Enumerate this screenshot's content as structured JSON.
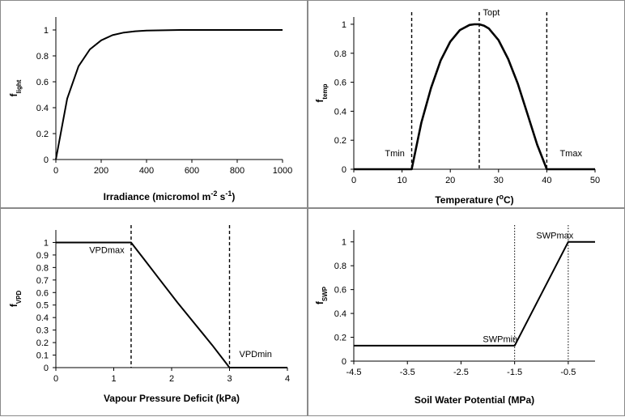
{
  "chart_data": [
    {
      "type": "line",
      "xlabel": "Irradiance (micromol m-2 s-1)",
      "xlabel_main": "Irradiance (micromol m",
      "xlabel_sup1": "-2",
      "xlabel_mid": " s",
      "xlabel_sup2": "-1",
      "xlabel_end": ")",
      "ylabel_main": "f",
      "ylabel_sub": "light",
      "xlim": [
        0,
        1000
      ],
      "ylim": [
        0,
        1.1
      ],
      "xticks": [
        "0",
        "200",
        "400",
        "600",
        "800",
        "1000"
      ],
      "yticks": [
        "0",
        "0.2",
        "0.4",
        "0.6",
        "0.8",
        "1"
      ],
      "series": [
        {
          "x": [
            0,
            50,
            100,
            150,
            200,
            250,
            300,
            350,
            400,
            450,
            500,
            550,
            600,
            700,
            800,
            900,
            1000
          ],
          "y": [
            0,
            0.47,
            0.72,
            0.85,
            0.92,
            0.96,
            0.98,
            0.99,
            0.995,
            0.997,
            0.998,
            1,
            1,
            1,
            1,
            1,
            1
          ]
        }
      ],
      "vlines": [],
      "annotations": []
    },
    {
      "type": "line",
      "xlabel_main": "Temperature (",
      "xlabel_sup1": "o",
      "xlabel_mid": "C)",
      "xlabel_sup2": "",
      "xlabel_end": "",
      "ylabel_main": "f",
      "ylabel_sub": "temp",
      "xlim": [
        0,
        50
      ],
      "ylim": [
        0,
        1.05
      ],
      "xticks": [
        "0",
        "10",
        "20",
        "30",
        "40",
        "50"
      ],
      "yticks": [
        "0",
        "0.2",
        "0.4",
        "0.6",
        "0.8",
        "1"
      ],
      "series": [
        {
          "x": [
            0,
            12,
            14,
            16,
            18,
            20,
            22,
            24,
            25,
            26,
            27,
            28,
            30,
            32,
            34,
            36,
            38,
            40,
            50
          ],
          "y": [
            0,
            0,
            0.32,
            0.56,
            0.75,
            0.88,
            0.96,
            0.995,
            1,
            1,
            0.99,
            0.97,
            0.89,
            0.76,
            0.59,
            0.38,
            0.17,
            0,
            0
          ]
        }
      ],
      "vlines": [
        12,
        26,
        40
      ],
      "vline_style": "dashed",
      "annotations": [
        {
          "text": "Tmin",
          "x": 8.5,
          "y": 0.09
        },
        {
          "text": "Topt",
          "x": 28.5,
          "y": 1.06
        },
        {
          "text": "Tmax",
          "x": 45,
          "y": 0.09
        }
      ]
    },
    {
      "type": "line",
      "xlabel_main": "Vapour Pressure Deficit (kPa)",
      "xlabel_sup1": "",
      "xlabel_mid": "",
      "xlabel_sup2": "",
      "xlabel_end": "",
      "ylabel_main": "f",
      "ylabel_sub": "VPD",
      "xlim": [
        0,
        4
      ],
      "ylim": [
        0,
        1.1
      ],
      "xticks": [
        "0",
        "1",
        "2",
        "3",
        "4"
      ],
      "yticks": [
        "0",
        "0.1",
        "0.2",
        "0.3",
        "0.4",
        "0.5",
        "0.6",
        "0.7",
        "0.8",
        "0.9",
        "1"
      ],
      "series": [
        {
          "x": [
            0,
            1.3,
            1.35,
            1.5,
            1.8,
            2.1,
            2.4,
            2.7,
            3.0,
            4.0
          ],
          "y": [
            1,
            1,
            0.97,
            0.88,
            0.7,
            0.52,
            0.35,
            0.18,
            0,
            0
          ]
        }
      ],
      "vlines": [
        1.3,
        3.0
      ],
      "vline_style": "dashed",
      "annotations": [
        {
          "text": "VPDmax",
          "x": 0.88,
          "y": 0.915
        },
        {
          "text": "VPDmin",
          "x": 3.45,
          "y": 0.085
        }
      ]
    },
    {
      "type": "line",
      "xlabel_main": "Soil Water Potential (MPa)",
      "xlabel_sup1": "",
      "xlabel_mid": "",
      "xlabel_sup2": "",
      "xlabel_end": "",
      "ylabel_main": "f",
      "ylabel_sub": "SWP",
      "xlim": [
        -4.5,
        0
      ],
      "ylim": [
        0,
        1.1
      ],
      "xticks": [
        "-4.5",
        "-3.5",
        "-2.5",
        "-1.5",
        "-0.5"
      ],
      "yticks": [
        "0",
        "0.2",
        "0.4",
        "0.6",
        "0.8",
        "1"
      ],
      "series": [
        {
          "x": [
            -4.5,
            -1.5,
            -0.5,
            0
          ],
          "y": [
            0.13,
            0.13,
            1,
            1
          ]
        }
      ],
      "vlines": [
        -1.5,
        -0.5
      ],
      "vline_style": "dotted",
      "annotations": [
        {
          "text": "SWPmin",
          "x": -1.77,
          "y": 0.16
        },
        {
          "text": "SWPmax",
          "x": -0.75,
          "y": 1.03
        }
      ]
    }
  ]
}
